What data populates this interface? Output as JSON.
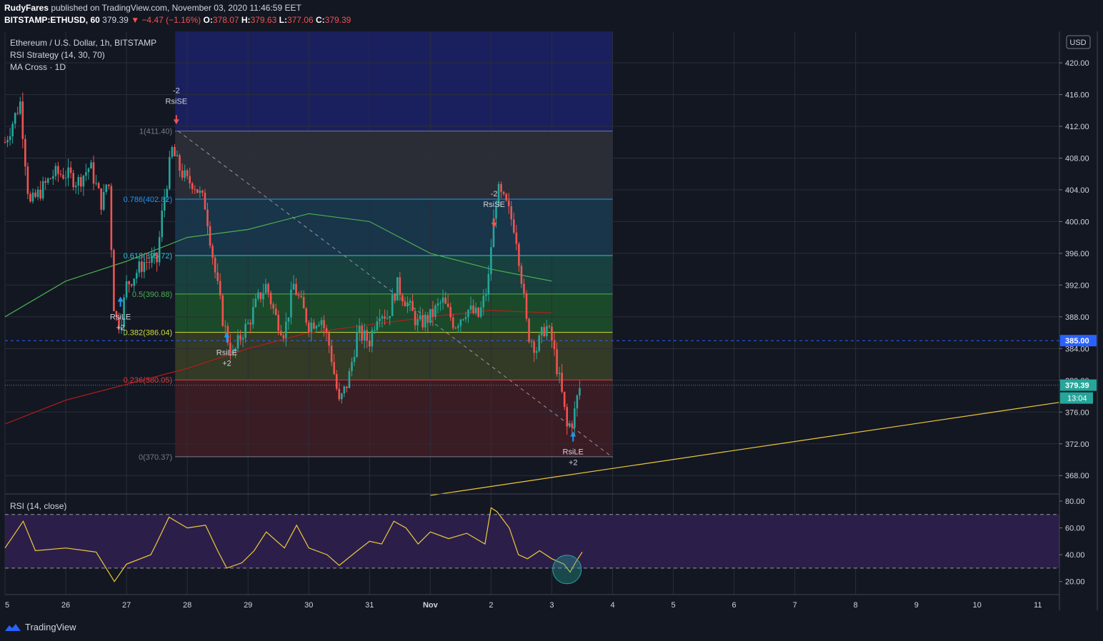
{
  "header": {
    "author": "RudyFares",
    "published": "published on TradingView.com, November 03, 2020 11:46:59 EET",
    "symbol": "BITSTAMP:ETHUSD, 60",
    "last": "379.39",
    "change": "−4.47 (−1.16%)",
    "open": "378.07",
    "high": "379.63",
    "low": "377.06",
    "close": "379.39"
  },
  "legend": {
    "title": "Ethereum / U.S. Dollar, 1h, BITSTAMP",
    "strategy": "RSI Strategy (14, 30, 70)",
    "ma": "MA Cross · 1D"
  },
  "price_axis": {
    "currency": "USD",
    "ticks": [
      "420.00",
      "416.00",
      "412.00",
      "408.00",
      "404.00",
      "400.00",
      "396.00",
      "392.00",
      "388.00",
      "384.00",
      "380.00",
      "376.00",
      "372.00",
      "368.00"
    ],
    "marker_level": "385.00",
    "last_price": "379.39",
    "countdown": "13:04"
  },
  "rsi": {
    "label": "RSI (14, close)",
    "ticks": [
      "80.00",
      "60.00",
      "40.00",
      "20.00"
    ],
    "upper": 70,
    "lower": 30
  },
  "time_axis": [
    "5",
    "26",
    "27",
    "28",
    "29",
    "30",
    "31",
    "Nov",
    "2",
    "3",
    "4",
    "5",
    "6",
    "7",
    "8",
    "9",
    "10",
    "11"
  ],
  "fib_labels": [
    "1(411.40)",
    "0.786(402.82)",
    "0.618(395.72)",
    "0.5(390.88)",
    "0.382(386.04)",
    "0.236(380.05)",
    "0(370.37)"
  ],
  "signals": [
    {
      "type": "RsiSE",
      "qty": "-2"
    },
    {
      "type": "RsiLE",
      "qty": "+2"
    },
    {
      "type": "RsiLE",
      "qty": "+2"
    },
    {
      "type": "RsiSE",
      "qty": "-2"
    },
    {
      "type": "RsiLE",
      "qty": "+2"
    }
  ],
  "footer": {
    "brand": "TradingView"
  },
  "colors": {
    "up": "#26a69a",
    "down": "#ef5350",
    "rsi": "#f0c93a",
    "ma_fast": "#4caf50",
    "ma_slow": "#b71c1c"
  },
  "chart_data": {
    "type": "candlestick",
    "symbol": "ETHUSD",
    "timeframe": "1h",
    "y_range": [
      366.0,
      422.5
    ],
    "fib_levels": [
      {
        "ratio": "1",
        "price": 411.4
      },
      {
        "ratio": "0.786",
        "price": 402.82
      },
      {
        "ratio": "0.618",
        "price": 395.72
      },
      {
        "ratio": "0.5",
        "price": 390.88
      },
      {
        "ratio": "0.382",
        "price": 386.04
      },
      {
        "ratio": "0.236",
        "price": 380.05
      },
      {
        "ratio": "0",
        "price": 370.37
      }
    ],
    "close_path": [
      [
        5.0,
        410
      ],
      [
        5.25,
        415
      ],
      [
        5.4,
        402
      ],
      [
        5.6,
        404
      ],
      [
        5.8,
        406
      ],
      [
        6.0,
        406
      ],
      [
        6.2,
        405
      ],
      [
        6.4,
        407
      ],
      [
        6.6,
        402
      ],
      [
        6.7,
        406
      ],
      [
        6.8,
        388
      ],
      [
        6.9,
        387
      ],
      [
        7.0,
        392
      ],
      [
        7.1,
        393
      ],
      [
        7.3,
        395
      ],
      [
        7.5,
        395
      ],
      [
        7.6,
        402
      ],
      [
        7.75,
        409
      ],
      [
        7.85,
        407
      ],
      [
        8.0,
        405
      ],
      [
        8.1,
        405
      ],
      [
        8.3,
        402
      ],
      [
        8.45,
        394
      ],
      [
        8.6,
        387
      ],
      [
        8.75,
        383
      ],
      [
        8.9,
        386
      ],
      [
        9.0,
        387
      ],
      [
        9.15,
        390
      ],
      [
        9.3,
        392
      ],
      [
        9.45,
        388
      ],
      [
        9.6,
        386
      ],
      [
        9.75,
        392
      ],
      [
        9.9,
        389
      ],
      [
        10.0,
        387
      ],
      [
        10.2,
        388
      ],
      [
        10.35,
        384
      ],
      [
        10.5,
        377
      ],
      [
        10.65,
        380
      ],
      [
        10.8,
        386
      ],
      [
        11.0,
        385
      ],
      [
        11.15,
        389
      ],
      [
        11.3,
        388
      ],
      [
        11.45,
        392
      ],
      [
        11.6,
        390
      ],
      [
        11.8,
        387
      ],
      [
        12.0,
        388
      ],
      [
        12.2,
        390
      ],
      [
        12.4,
        387
      ],
      [
        12.6,
        389
      ],
      [
        12.8,
        388
      ],
      [
        12.95,
        392
      ],
      [
        13.0,
        397
      ],
      [
        13.1,
        404
      ],
      [
        13.25,
        402
      ],
      [
        13.4,
        399
      ],
      [
        13.5,
        393
      ],
      [
        13.6,
        386
      ],
      [
        13.75,
        384
      ],
      [
        13.9,
        387
      ],
      [
        14.0,
        385
      ],
      [
        14.15,
        379
      ],
      [
        14.25,
        374
      ],
      [
        14.35,
        375
      ],
      [
        14.45,
        379
      ]
    ],
    "ma_fast": [
      [
        5.0,
        388
      ],
      [
        6.0,
        392.5
      ],
      [
        7.0,
        395
      ],
      [
        8.0,
        398
      ],
      [
        9.0,
        399
      ],
      [
        10.0,
        401
      ],
      [
        11.0,
        400
      ],
      [
        12.0,
        396
      ],
      [
        13.0,
        394
      ],
      [
        14.0,
        392.5
      ]
    ],
    "ma_slow": [
      [
        5.0,
        374.5
      ],
      [
        6.0,
        377.5
      ],
      [
        7.0,
        379.5
      ],
      [
        8.0,
        381.5
      ],
      [
        9.0,
        384
      ],
      [
        10.0,
        386
      ],
      [
        11.0,
        387
      ],
      [
        12.0,
        388
      ],
      [
        13.0,
        388.8
      ],
      [
        14.0,
        388.5
      ]
    ],
    "dashed_trend": [
      [
        7.85,
        411.4
      ],
      [
        15.0,
        370.3
      ]
    ],
    "yellow_trend": [
      [
        12.0,
        365.5
      ],
      [
        18.8,
        373.2
      ]
    ],
    "rsi_values": [
      [
        5.0,
        45
      ],
      [
        5.3,
        65
      ],
      [
        5.5,
        43
      ],
      [
        6.0,
        45
      ],
      [
        6.5,
        42
      ],
      [
        6.8,
        20
      ],
      [
        7.0,
        33
      ],
      [
        7.4,
        40
      ],
      [
        7.5,
        49
      ],
      [
        7.7,
        68
      ],
      [
        8.0,
        60
      ],
      [
        8.3,
        62
      ],
      [
        8.5,
        43
      ],
      [
        8.65,
        30
      ],
      [
        8.9,
        34
      ],
      [
        9.1,
        43
      ],
      [
        9.3,
        57
      ],
      [
        9.6,
        45
      ],
      [
        9.8,
        62
      ],
      [
        10.0,
        45
      ],
      [
        10.3,
        40
      ],
      [
        10.5,
        32
      ],
      [
        10.8,
        43
      ],
      [
        11.0,
        50
      ],
      [
        11.2,
        48
      ],
      [
        11.4,
        65
      ],
      [
        11.6,
        60
      ],
      [
        11.8,
        48
      ],
      [
        12.0,
        57
      ],
      [
        12.3,
        52
      ],
      [
        12.6,
        56
      ],
      [
        12.9,
        48
      ],
      [
        13.0,
        75
      ],
      [
        13.1,
        72
      ],
      [
        13.3,
        60
      ],
      [
        13.45,
        40
      ],
      [
        13.6,
        37
      ],
      [
        13.8,
        43
      ],
      [
        14.0,
        37
      ],
      [
        14.2,
        33
      ],
      [
        14.3,
        27
      ],
      [
        14.4,
        35
      ],
      [
        14.5,
        42
      ]
    ]
  }
}
